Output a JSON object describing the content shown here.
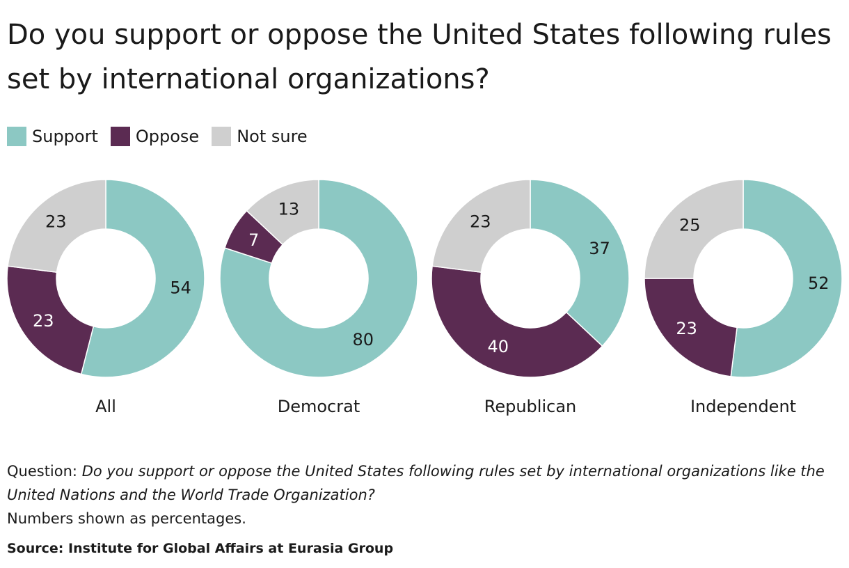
{
  "title": "Do you support or oppose the United States following rules set by international organizations?",
  "legend": [
    {
      "label": "Support",
      "color": "#8cc8c3"
    },
    {
      "label": "Oppose",
      "color": "#5b2b52"
    },
    {
      "label": "Not sure",
      "color": "#cfcfcf"
    }
  ],
  "chart_data": {
    "type": "pie",
    "title": "Do you support or oppose the United States following rules set by international organizations?",
    "unit": "percent",
    "series_order": [
      "Support",
      "Oppose",
      "Not sure"
    ],
    "colors": {
      "Support": "#8cc8c3",
      "Oppose": "#5b2b52",
      "Not sure": "#cfcfcf"
    },
    "charts": [
      {
        "label": "All",
        "values": {
          "Support": 54,
          "Oppose": 23,
          "Not sure": 23
        }
      },
      {
        "label": "Democrat",
        "values": {
          "Support": 80,
          "Oppose": 7,
          "Not sure": 13
        }
      },
      {
        "label": "Republican",
        "values": {
          "Support": 37,
          "Oppose": 40,
          "Not sure": 23
        }
      },
      {
        "label": "Independent",
        "values": {
          "Support": 52,
          "Oppose": 23,
          "Not sure": 25
        }
      }
    ]
  },
  "note": {
    "question_prefix": "Question: ",
    "question_text": "Do you support or oppose the United States following rules set by international organizations like the United Nations and the World Trade Organization?",
    "numbers_note": "Numbers shown as percentages."
  },
  "source": "Source: Institute for Global Affairs at Eurasia Group"
}
